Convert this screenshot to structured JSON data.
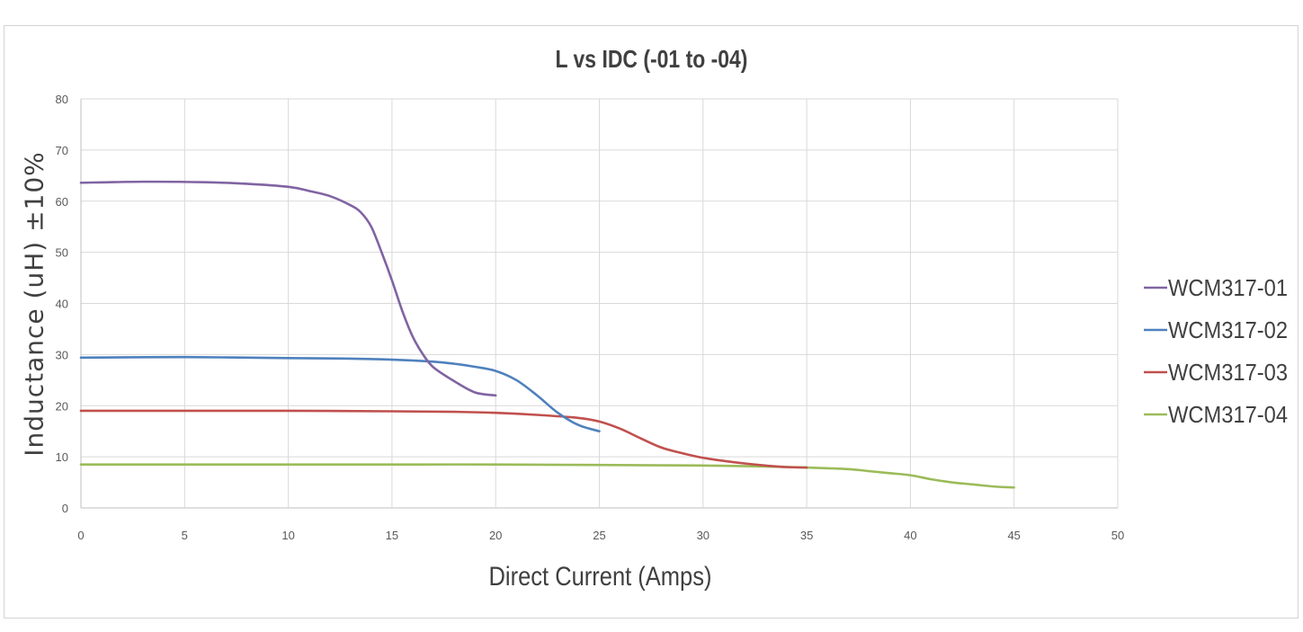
{
  "chart_data": {
    "type": "line",
    "title": "L vs IDC (-01 to -04)",
    "xlabel": "Direct Current (Amps)",
    "ylabel": "Inductance (uH) ±10%",
    "xlim": [
      0,
      50
    ],
    "ylim": [
      0,
      80
    ],
    "xticks": [
      "0",
      "5",
      "10",
      "15",
      "20",
      "25",
      "30",
      "35",
      "40",
      "45",
      "50"
    ],
    "yticks": [
      "0",
      "10",
      "20",
      "30",
      "40",
      "50",
      "60",
      "70",
      "80"
    ],
    "grid": true,
    "legend_position": "right",
    "series": [
      {
        "name": "WCM317-01",
        "color": "#8064a2",
        "x": [
          0,
          3,
          6,
          8,
          10,
          11,
          12,
          13,
          13.5,
          14,
          14.5,
          15,
          15.5,
          16,
          16.5,
          17,
          18,
          19,
          20
        ],
        "y": [
          63.6,
          63.8,
          63.7,
          63.4,
          62.8,
          62.0,
          61.0,
          59.2,
          57.8,
          55.0,
          50.0,
          44.5,
          38.5,
          33.5,
          30.0,
          27.5,
          24.8,
          22.6,
          22.0
        ]
      },
      {
        "name": "WCM317-02",
        "color": "#4f81bd",
        "x": [
          0,
          5,
          10,
          13,
          15,
          17,
          18,
          19,
          20,
          21,
          22,
          23,
          24,
          25
        ],
        "y": [
          29.4,
          29.5,
          29.3,
          29.2,
          29.0,
          28.6,
          28.2,
          27.6,
          26.8,
          25.0,
          22.0,
          18.6,
          16.2,
          15.0
        ]
      },
      {
        "name": "WCM317-03",
        "color": "#c0504d",
        "x": [
          0,
          5,
          10,
          15,
          18,
          20,
          22,
          24,
          25,
          26,
          27,
          28,
          29,
          30,
          31,
          32,
          33,
          34,
          35
        ],
        "y": [
          19.0,
          19.0,
          19.0,
          18.9,
          18.8,
          18.6,
          18.2,
          17.6,
          16.9,
          15.5,
          13.6,
          11.8,
          10.7,
          9.8,
          9.2,
          8.7,
          8.3,
          8.0,
          7.9
        ]
      },
      {
        "name": "WCM317-04",
        "color": "#9bbb59",
        "x": [
          0,
          5,
          10,
          15,
          20,
          25,
          30,
          33,
          35,
          37,
          38,
          39,
          40,
          41,
          42,
          43,
          44,
          45
        ],
        "y": [
          8.5,
          8.5,
          8.5,
          8.5,
          8.5,
          8.4,
          8.3,
          8.1,
          7.9,
          7.6,
          7.2,
          6.8,
          6.4,
          5.6,
          5.0,
          4.6,
          4.2,
          4.0
        ]
      }
    ]
  }
}
